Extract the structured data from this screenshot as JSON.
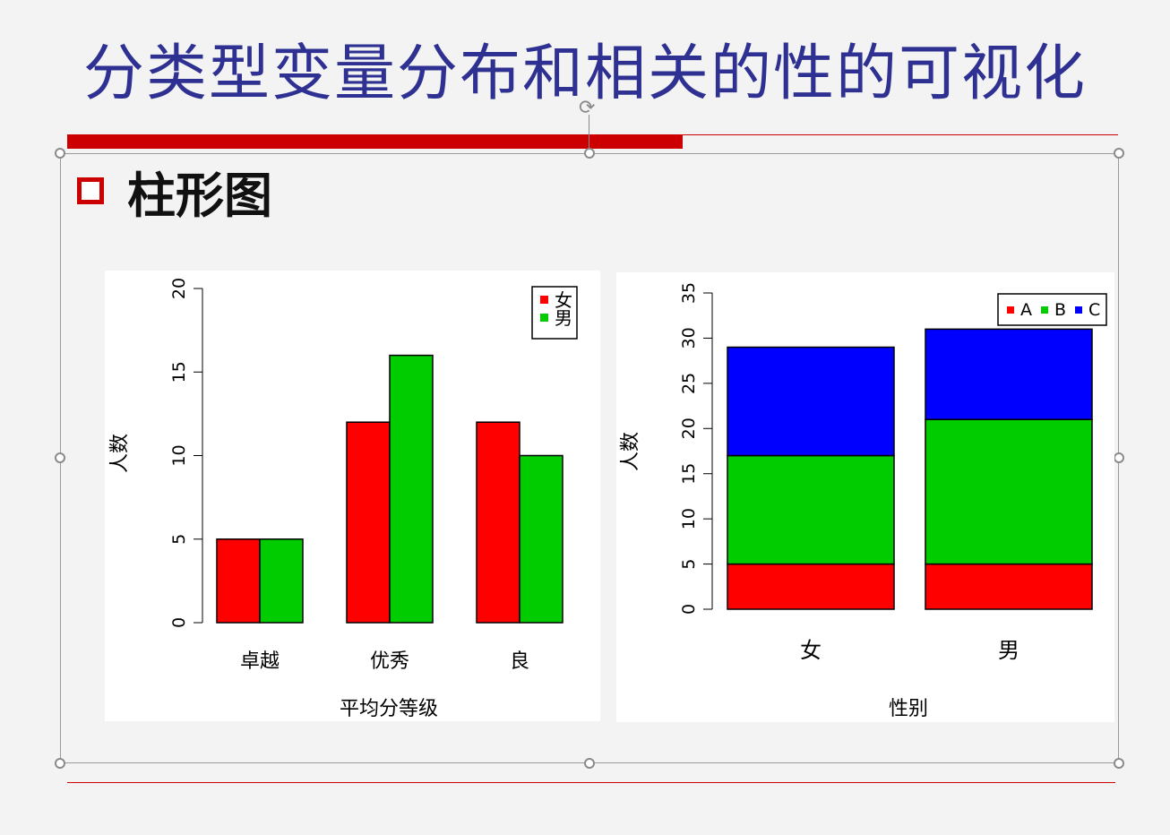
{
  "slide": {
    "title": "分类型变量分布和相关的性的可视化",
    "heading": "柱形图"
  },
  "icons": {
    "bullet": "square-bullet-icon",
    "rotate": "rotate-handle-icon"
  },
  "colors": {
    "title": "#2e3192",
    "accent": "#cc0000",
    "red": "#ff0000",
    "green": "#00cc00",
    "blue": "#0000ff"
  },
  "chart_data": [
    {
      "type": "bar",
      "mode": "grouped",
      "categories": [
        "卓越",
        "优秀",
        "良"
      ],
      "series": [
        {
          "name": "女",
          "color": "#ff0000",
          "values": [
            5,
            12,
            12
          ]
        },
        {
          "name": "男",
          "color": "#00cc00",
          "values": [
            5,
            16,
            10
          ]
        }
      ],
      "xlabel": "平均分等级",
      "ylabel": "人数",
      "ylim": [
        0,
        20
      ],
      "yticks": [
        "0",
        "5",
        "10",
        "15",
        "20"
      ],
      "legend": "top-right",
      "grid": false
    },
    {
      "type": "bar",
      "mode": "stacked",
      "categories": [
        "女",
        "男"
      ],
      "series": [
        {
          "name": "A",
          "color": "#ff0000",
          "values": [
            5,
            5
          ]
        },
        {
          "name": "B",
          "color": "#00cc00",
          "values": [
            12,
            16
          ]
        },
        {
          "name": "C",
          "color": "#0000ff",
          "values": [
            12,
            10
          ]
        }
      ],
      "xlabel": "性别",
      "ylabel": "人数",
      "ylim": [
        0,
        35
      ],
      "yticks": [
        "0",
        "5",
        "10",
        "15",
        "20",
        "25",
        "30",
        "35"
      ],
      "legend": "top-right",
      "grid": false
    }
  ]
}
